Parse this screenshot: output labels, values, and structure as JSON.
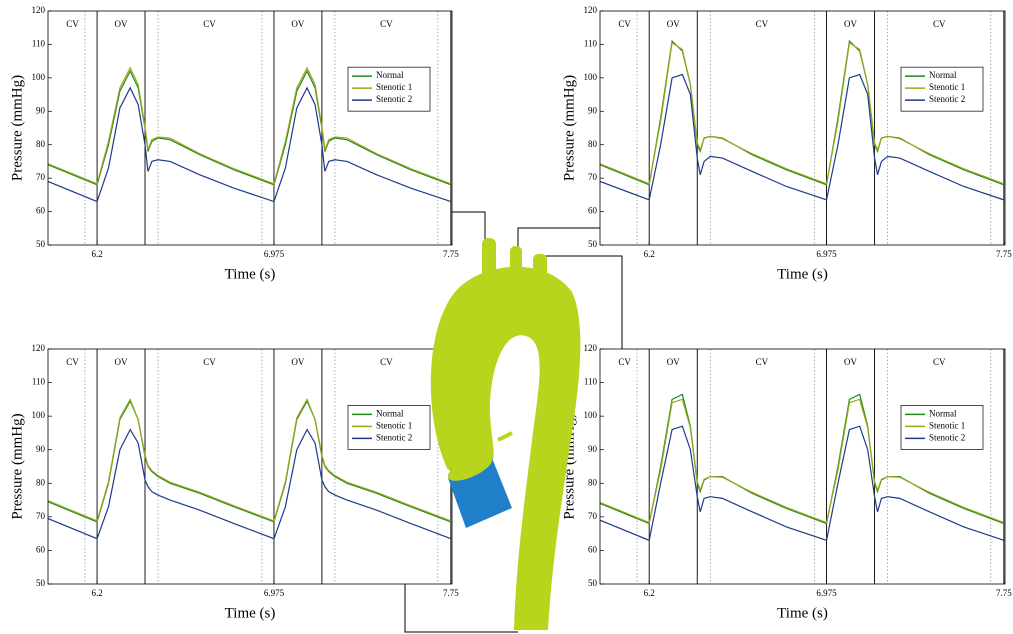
{
  "chart_data": [
    {
      "type": "line",
      "xlabel": "Time (s)",
      "ylabel": "Pressure (mmHg)",
      "legend": "upper right",
      "xlim": [
        5.985,
        7.755
      ],
      "ylim": [
        50,
        120
      ],
      "xticks": [
        6.2,
        6.975,
        7.75
      ],
      "yticks": [
        50,
        60,
        70,
        80,
        90,
        100,
        110,
        120
      ],
      "phase_labels": [
        "CV",
        "OV",
        "CV",
        "OV",
        "CV"
      ],
      "phase_lines": {
        "solid": [
          6.2,
          6.41,
          6.975,
          7.185,
          7.75
        ],
        "dotted": [
          6.147,
          6.467,
          6.922,
          7.242,
          7.693
        ]
      },
      "x": [
        5.985,
        6.2,
        6.25,
        6.3,
        6.345,
        6.38,
        6.41,
        6.423,
        6.44,
        6.467,
        6.52,
        6.65,
        6.8,
        6.975,
        7.025,
        7.075,
        7.12,
        7.155,
        7.185,
        7.198,
        7.215,
        7.242,
        7.295,
        7.425,
        7.575,
        7.75
      ],
      "series": [
        {
          "name": "Normal",
          "color": "#1a8a1a",
          "values": [
            74,
            68,
            80,
            96,
            102,
            97,
            85,
            78,
            81,
            82,
            81.5,
            77,
            72.5,
            68,
            80,
            96,
            102,
            97,
            85,
            78,
            81,
            82,
            81.5,
            77,
            72.5,
            68
          ]
        },
        {
          "name": "Stenotic 1",
          "color": "#9aa61a",
          "values": [
            74.3,
            68.3,
            81,
            97,
            103,
            98,
            85.5,
            78.5,
            81.5,
            82.3,
            82,
            77.3,
            72.8,
            68.3,
            81,
            97,
            103,
            98,
            85.5,
            78.5,
            81.5,
            82.3,
            82,
            77.3,
            72.8,
            68.3
          ]
        },
        {
          "name": "Stenotic 2",
          "color": "#1f3a8a",
          "values": [
            69,
            63,
            73,
            91,
            97,
            92,
            80,
            72,
            75,
            75.5,
            75,
            71,
            67,
            63,
            73,
            91,
            97,
            92,
            80,
            72,
            75,
            75.5,
            75,
            71,
            67,
            63
          ]
        }
      ]
    },
    {
      "type": "line",
      "xlabel": "Time (s)",
      "ylabel": "Pressure (mmHg)",
      "legend": "upper right",
      "xlim": [
        5.985,
        7.755
      ],
      "ylim": [
        50,
        120
      ],
      "xticks": [
        6.2,
        6.975,
        7.75
      ],
      "yticks": [
        50,
        60,
        70,
        80,
        90,
        100,
        110,
        120
      ],
      "phase_labels": [
        "CV",
        "OV",
        "CV",
        "OV",
        "CV"
      ],
      "phase_lines": {
        "solid": [
          6.2,
          6.41,
          6.975,
          7.185,
          7.75
        ],
        "dotted": [
          6.147,
          6.467,
          6.922,
          7.242,
          7.693
        ]
      },
      "x": [
        5.985,
        6.2,
        6.25,
        6.3,
        6.345,
        6.38,
        6.41,
        6.423,
        6.44,
        6.467,
        6.52,
        6.65,
        6.8,
        6.975,
        7.025,
        7.075,
        7.12,
        7.155,
        7.185,
        7.198,
        7.215,
        7.242,
        7.295,
        7.425,
        7.575,
        7.75
      ],
      "series": [
        {
          "name": "Normal",
          "color": "#1a8a1a",
          "values": [
            74,
            68,
            88,
            111,
            108,
            98,
            80,
            78,
            82,
            82.5,
            82,
            77,
            72.5,
            68,
            88,
            111,
            108,
            98,
            80,
            78,
            82,
            82.5,
            82,
            77,
            72.5,
            68
          ]
        },
        {
          "name": "Stenotic 1",
          "color": "#9aa61a",
          "values": [
            74.3,
            68.3,
            87,
            110.5,
            108.5,
            98,
            80.5,
            78.5,
            82,
            82.5,
            81.8,
            77.3,
            72.8,
            68.3,
            87,
            110.5,
            108.5,
            98,
            80.5,
            78.5,
            82,
            82.5,
            81.8,
            77.3,
            72.8,
            68.3
          ]
        },
        {
          "name": "Stenotic 2",
          "color": "#1f3a8a",
          "values": [
            69,
            63.5,
            80,
            100,
            101,
            95,
            76,
            71,
            75,
            76.5,
            76,
            72,
            67.5,
            63.5,
            80,
            100,
            101,
            95,
            76,
            71,
            75,
            76.5,
            76,
            72,
            67.5,
            63.5
          ]
        }
      ]
    },
    {
      "type": "line",
      "xlabel": "Time (s)",
      "ylabel": "Pressure (mmHg)",
      "legend": "upper right",
      "xlim": [
        5.985,
        7.755
      ],
      "ylim": [
        50,
        120
      ],
      "xticks": [
        6.2,
        6.975,
        7.75
      ],
      "yticks": [
        50,
        60,
        70,
        80,
        90,
        100,
        110,
        120
      ],
      "phase_labels": [
        "CV",
        "OV",
        "CV",
        "OV",
        "CV"
      ],
      "phase_lines": {
        "solid": [
          6.2,
          6.41,
          6.975,
          7.185,
          7.75
        ],
        "dotted": [
          6.147,
          6.467,
          6.922,
          7.242,
          7.693
        ]
      },
      "x": [
        5.985,
        6.2,
        6.25,
        6.3,
        6.345,
        6.38,
        6.41,
        6.423,
        6.44,
        6.467,
        6.52,
        6.65,
        6.8,
        6.975,
        7.025,
        7.075,
        7.12,
        7.155,
        7.185,
        7.198,
        7.215,
        7.242,
        7.295,
        7.425,
        7.575,
        7.75
      ],
      "series": [
        {
          "name": "Normal",
          "color": "#1a8a1a",
          "values": [
            74.5,
            68.5,
            80,
            99,
            104.5,
            99,
            88,
            85,
            83.5,
            82,
            80,
            77,
            73,
            68.5,
            80,
            99,
            104.5,
            99,
            88,
            85,
            83.5,
            82,
            80,
            77,
            73,
            68.5
          ]
        },
        {
          "name": "Stenotic 1",
          "color": "#9aa61a",
          "values": [
            74.8,
            68.8,
            80.5,
            99.5,
            105,
            99,
            88.5,
            85.3,
            83.8,
            82.3,
            80.3,
            77.3,
            73.3,
            68.8,
            80.5,
            99.5,
            105,
            99,
            88.5,
            85.3,
            83.8,
            82.3,
            80.3,
            77.3,
            73.3,
            68.8
          ]
        },
        {
          "name": "Stenotic 2",
          "color": "#1f3a8a",
          "values": [
            69.5,
            63.5,
            73,
            90,
            96,
            92,
            81,
            79,
            77.5,
            76.5,
            75,
            72,
            68,
            63.5,
            73,
            90,
            96,
            92,
            81,
            79,
            77.5,
            76.5,
            75,
            72,
            68,
            63.5
          ]
        }
      ]
    },
    {
      "type": "line",
      "xlabel": "Time (s)",
      "ylabel": "Pressure (mmHg)",
      "legend": "upper right",
      "xlim": [
        5.985,
        7.755
      ],
      "ylim": [
        50,
        120
      ],
      "xticks": [
        6.2,
        6.975,
        7.75
      ],
      "yticks": [
        50,
        60,
        70,
        80,
        90,
        100,
        110,
        120
      ],
      "phase_labels": [
        "CV",
        "OV",
        "CV",
        "OV",
        "CV"
      ],
      "phase_lines": {
        "solid": [
          6.2,
          6.41,
          6.975,
          7.185,
          7.75
        ],
        "dotted": [
          6.147,
          6.467,
          6.922,
          7.242,
          7.693
        ]
      },
      "x": [
        5.985,
        6.2,
        6.25,
        6.3,
        6.345,
        6.38,
        6.41,
        6.423,
        6.44,
        6.467,
        6.52,
        6.65,
        6.8,
        6.975,
        7.025,
        7.075,
        7.12,
        7.155,
        7.185,
        7.198,
        7.215,
        7.242,
        7.295,
        7.425,
        7.575,
        7.75
      ],
      "series": [
        {
          "name": "Normal",
          "color": "#1a8a1a",
          "values": [
            74,
            68,
            85,
            105,
            106.5,
            97,
            80,
            77.5,
            81,
            82,
            82,
            77,
            72.5,
            68,
            85,
            105,
            106.5,
            97,
            80,
            77.5,
            81,
            82,
            82,
            77,
            72.5,
            68
          ]
        },
        {
          "name": "Stenotic 1",
          "color": "#9aa61a",
          "values": [
            74.3,
            68.3,
            84,
            104,
            105,
            96.5,
            80.5,
            78,
            81.2,
            82,
            81.8,
            77.3,
            72.8,
            68.3,
            84,
            104,
            105,
            96.5,
            80.5,
            78,
            81.2,
            82,
            81.8,
            77.3,
            72.8,
            68.3
          ]
        },
        {
          "name": "Stenotic 2",
          "color": "#1f3a8a",
          "values": [
            69,
            63,
            80,
            96,
            97,
            90,
            76,
            71.5,
            75.5,
            76,
            75.5,
            71.5,
            67,
            63,
            80,
            96,
            97,
            90,
            76,
            71.5,
            75.5,
            76,
            75.5,
            71.5,
            67,
            63
          ]
        }
      ]
    }
  ]
}
